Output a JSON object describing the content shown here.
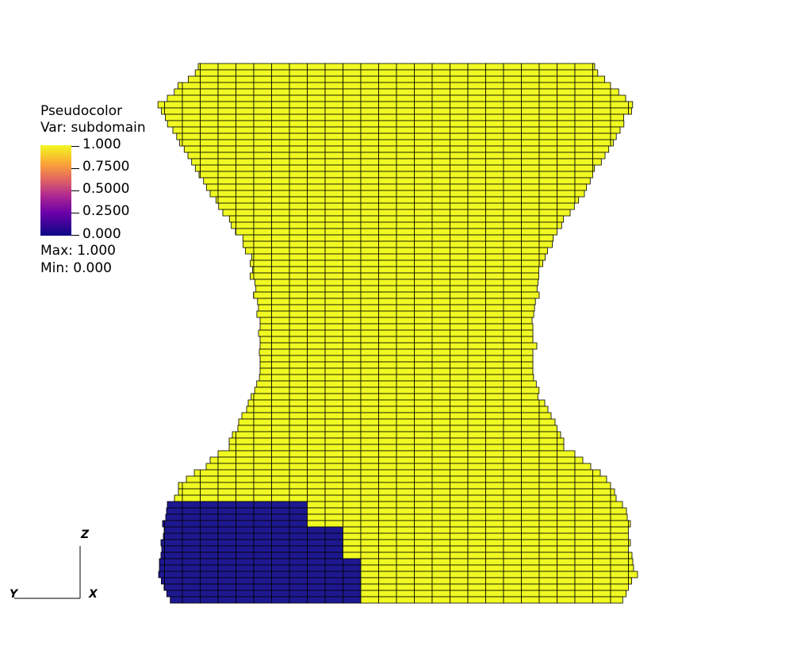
{
  "legend": {
    "plot_type": "Pseudocolor",
    "variable": "Var: subdomain",
    "ticks": [
      "1.000",
      "0.7500",
      "0.5000",
      "0.2500",
      "0.000"
    ],
    "max_label": "Max:  1.000",
    "min_label": "Min:  0.000",
    "colormap": "plasma",
    "colors": {
      "high": "#f0f921",
      "low": "#0d0887"
    }
  },
  "axes": {
    "z": "Z",
    "y": "Y",
    "x": "X"
  },
  "mesh": {
    "colors": {
      "subdomain_1": "#f0f921",
      "subdomain_0": "#1e1890",
      "edges": "#000000"
    }
  }
}
